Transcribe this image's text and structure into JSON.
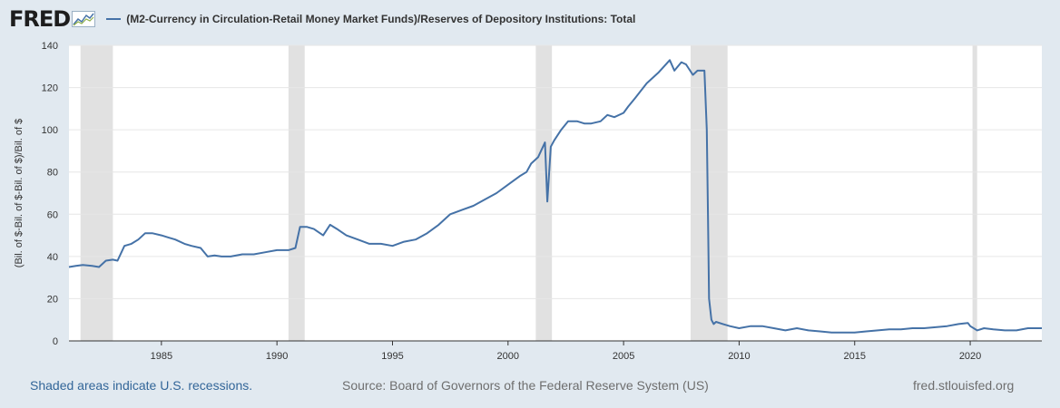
{
  "header": {
    "logo_text": "FRED",
    "legend_label": "(M2-Currency in Circulation-Retail Money Market Funds)/Reserves of Depository Institutions: Total",
    "series_color": "#4572a7"
  },
  "footer": {
    "recessions_note": "Shaded areas indicate U.S. recessions.",
    "source": "Source: Board of Governors of the Federal Reserve System (US)",
    "site": "fred.stlouisfed.org"
  },
  "chart_data": {
    "type": "line",
    "ylabel": "(Bil. of $-Bil. of $-Bil. of $)/Bil. of $",
    "xlim": [
      1981.0,
      2023.1
    ],
    "ylim": [
      0,
      140
    ],
    "yticks": [
      0,
      20,
      40,
      60,
      80,
      100,
      120,
      140
    ],
    "xticks": [
      1985,
      1990,
      1995,
      2000,
      2005,
      2010,
      2015,
      2020
    ],
    "grid": true,
    "recessions": [
      [
        1981.5,
        1982.9
      ],
      [
        1990.5,
        1991.2
      ],
      [
        2001.2,
        2001.9
      ],
      [
        2007.9,
        2009.5
      ],
      [
        2020.1,
        2020.3
      ]
    ],
    "series": [
      {
        "name": "(M2-Currency in Circulation-Retail Money Market Funds)/Reserves of Depository Institutions: Total",
        "color": "#4572a7",
        "x": [
          1981.0,
          1981.3,
          1981.6,
          1982.0,
          1982.3,
          1982.6,
          1982.9,
          1983.1,
          1983.4,
          1983.7,
          1984.0,
          1984.3,
          1984.6,
          1985.0,
          1985.3,
          1985.6,
          1986.0,
          1986.3,
          1986.7,
          1987.0,
          1987.3,
          1987.6,
          1988.0,
          1988.5,
          1989.0,
          1989.5,
          1990.0,
          1990.5,
          1990.8,
          1991.0,
          1991.3,
          1991.6,
          1992.0,
          1992.3,
          1992.6,
          1993.0,
          1993.5,
          1994.0,
          1994.5,
          1995.0,
          1995.5,
          1996.0,
          1996.5,
          1997.0,
          1997.5,
          1998.0,
          1998.5,
          1999.0,
          1999.5,
          2000.0,
          2000.5,
          2000.8,
          2001.0,
          2001.3,
          2001.6,
          2001.7,
          2001.85,
          2002.0,
          2002.3,
          2002.6,
          2003.0,
          2003.3,
          2003.6,
          2004.0,
          2004.3,
          2004.6,
          2005.0,
          2005.2,
          2005.5,
          2006.0,
          2006.5,
          2007.0,
          2007.2,
          2007.5,
          2007.7,
          2008.0,
          2008.2,
          2008.5,
          2008.6,
          2008.65,
          2008.7,
          2008.8,
          2008.9,
          2009.0,
          2009.3,
          2009.6,
          2010.0,
          2010.5,
          2011.0,
          2011.5,
          2012.0,
          2012.5,
          2013.0,
          2013.5,
          2014.0,
          2014.5,
          2015.0,
          2015.5,
          2016.0,
          2016.5,
          2017.0,
          2017.5,
          2018.0,
          2018.5,
          2019.0,
          2019.5,
          2019.9,
          2020.0,
          2020.3,
          2020.6,
          2021.0,
          2021.5,
          2022.0,
          2022.5,
          2023.1
        ],
        "values": [
          35,
          35.5,
          36,
          35.5,
          35,
          38,
          38.5,
          38,
          45,
          46,
          48,
          51,
          51,
          50,
          49,
          48,
          46,
          45,
          44,
          40,
          40.5,
          40,
          40,
          41,
          41,
          42,
          43,
          43,
          44,
          54,
          54,
          53,
          50,
          55,
          53,
          50,
          48,
          46,
          46,
          45,
          47,
          48,
          51,
          55,
          60,
          62,
          64,
          67,
          70,
          74,
          78,
          80,
          84,
          87,
          94,
          66,
          92,
          95,
          100,
          104,
          104,
          103,
          103,
          104,
          107,
          106,
          108,
          111,
          115,
          122,
          127,
          133,
          128,
          132,
          131,
          126,
          128,
          128,
          100,
          60,
          20,
          10,
          8,
          9,
          8,
          7,
          6,
          7,
          7,
          6,
          5,
          6,
          5,
          4.5,
          4,
          4,
          4,
          4.5,
          5,
          5.5,
          5.5,
          6,
          6,
          6.5,
          7,
          8,
          8.5,
          7,
          5,
          6,
          5.5,
          5,
          5,
          6,
          6
        ]
      }
    ]
  }
}
